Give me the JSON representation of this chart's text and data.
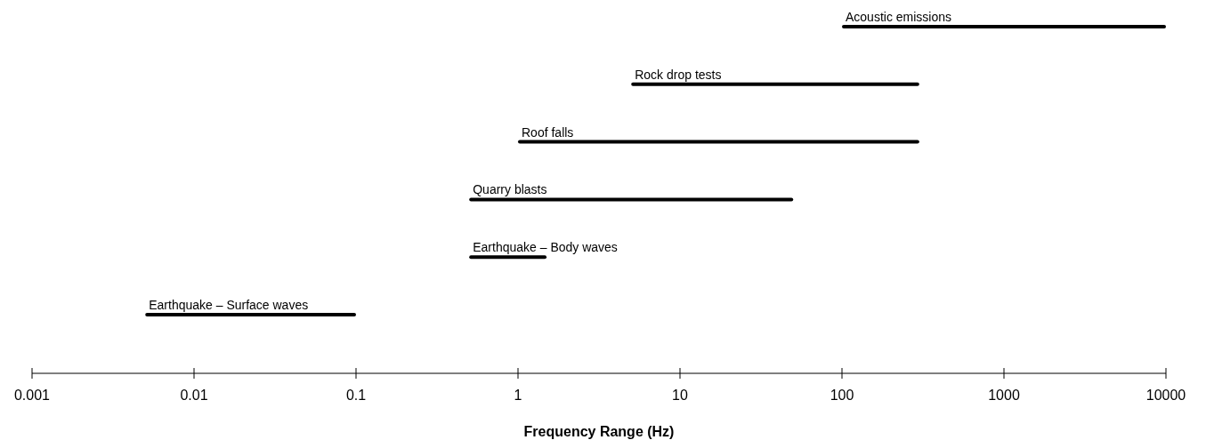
{
  "chart_data": {
    "type": "bar",
    "orientation": "horizontal",
    "log": "x",
    "xlabel": "Frequency Range (Hz)",
    "categories": [
      "Acoustic emissions",
      "Rock drop tests",
      "Roof falls",
      "Quarry blasts",
      "Earthquake – Body waves",
      "Earthquake – Surface waves"
    ],
    "base": [
      100,
      5,
      1,
      0.5,
      0.5,
      0.005
    ],
    "values": [
      9900,
      295,
      299,
      49.5,
      1,
      0.095
    ],
    "color": "#000000",
    "xlim": [
      0.001,
      10000
    ],
    "xticks": [
      0.001,
      0.01,
      0.1,
      1,
      10,
      100,
      1000,
      10000
    ],
    "tick_labels": "x",
    "grid": false
  }
}
